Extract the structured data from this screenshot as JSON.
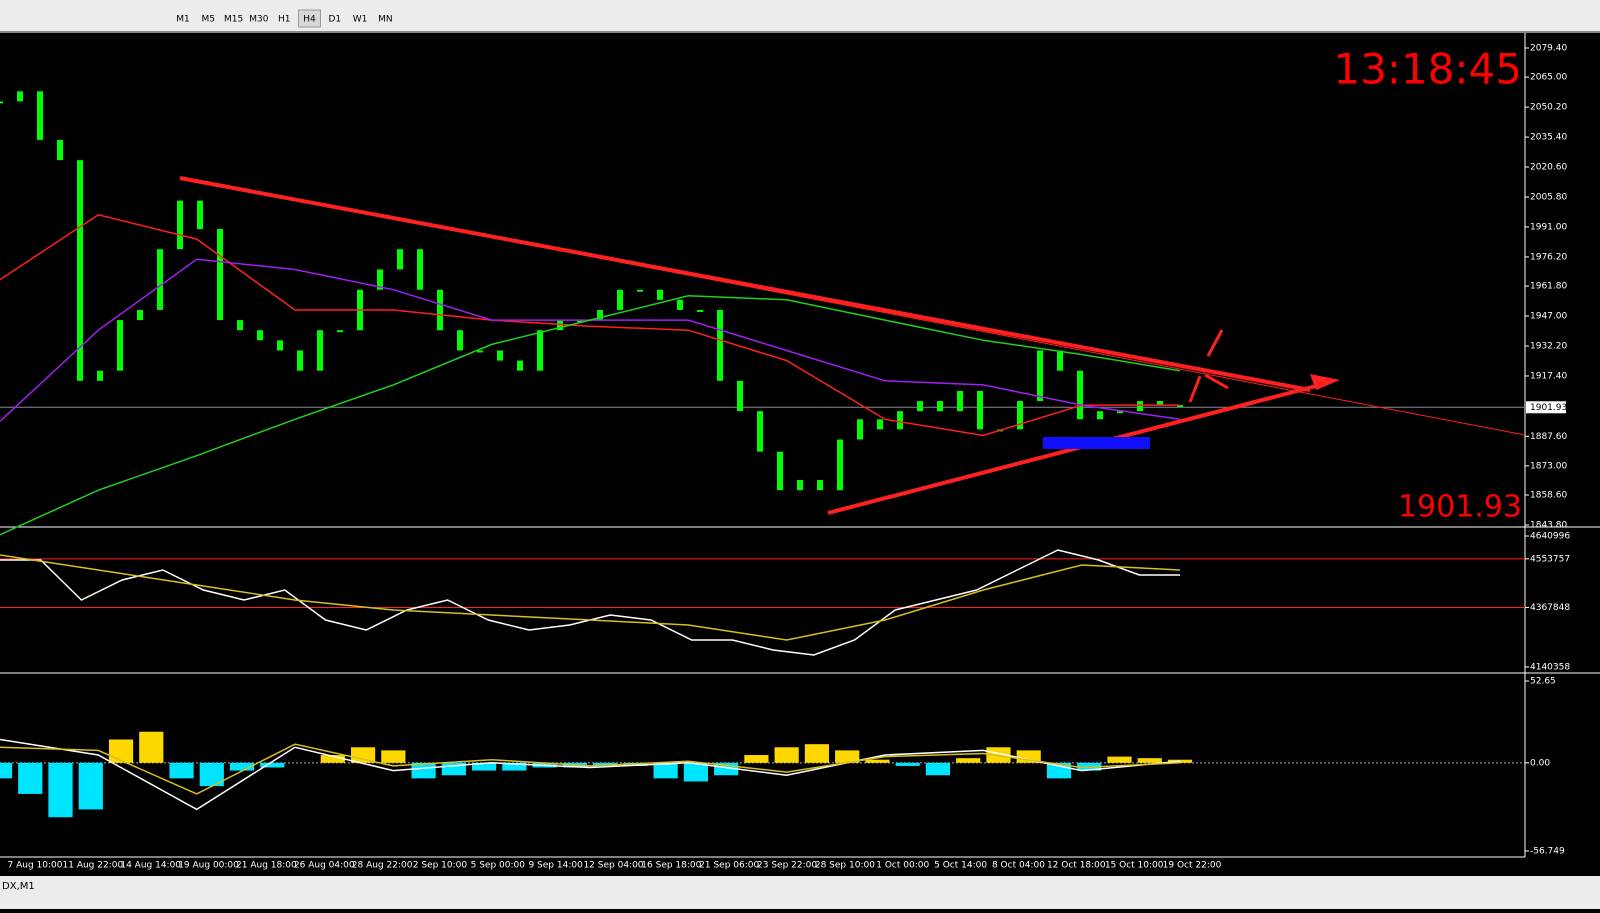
{
  "toolbar": {
    "timeframes": [
      "M1",
      "M5",
      "M15",
      "M30",
      "H1",
      "H4",
      "D1",
      "W1",
      "MN"
    ]
  },
  "status_tab": "DX,M1",
  "chart_data": [
    {
      "type": "candlestick",
      "clock": "13:18:45",
      "current_price": 1901.93,
      "time_labels": [
        "7 Aug 10:00",
        "11 Aug 22:00",
        "14 Aug 14:00",
        "19 Aug 00:00",
        "21 Aug 18:00",
        "26 Aug 04:00",
        "28 Aug 22:00",
        "2 Sep 10:00",
        "5 Sep 00:00",
        "9 Sep 14:00",
        "12 Sep 04:00",
        "16 Sep 18:00",
        "21 Sep 06:00",
        "23 Sep 22:00",
        "28 Sep 10:00",
        "1 Oct 00:00",
        "5 Oct 14:00",
        "8 Oct 04:00",
        "12 Oct 18:00",
        "15 Oct 10:00",
        "19 Oct 22:00"
      ],
      "ylim": [
        1842.8,
        2086.8
      ],
      "yticks": [
        {
          "value": 2079.4,
          "label": "2079.40"
        },
        {
          "value": 2065,
          "label": "2065.00"
        },
        {
          "value": 2050.2,
          "label": "2050.20"
        },
        {
          "value": 2035.4,
          "label": "2035.40"
        },
        {
          "value": 2020.6,
          "label": "2020.60"
        },
        {
          "value": 2005.8,
          "label": "2005.80"
        },
        {
          "value": 1991,
          "label": "1991.00"
        },
        {
          "value": 1976.2,
          "label": "1976.20"
        },
        {
          "value": 1961.8,
          "label": "1961.80"
        },
        {
          "value": 1947,
          "label": "1947.00"
        },
        {
          "value": 1932.2,
          "label": "1932.20"
        },
        {
          "value": 1917.4,
          "label": "1917.40"
        },
        {
          "value": 1887.6,
          "label": "1887.60"
        },
        {
          "value": 1873,
          "label": "1873.00"
        },
        {
          "value": 1858.6,
          "label": "1858.60"
        },
        {
          "value": 1843.8,
          "label": "1843.80"
        }
      ],
      "candle_color": "#00ff00",
      "values": [
        2053,
        2058,
        2034,
        2024,
        1915,
        1920,
        1945,
        1950,
        1980,
        2004,
        1990,
        1945,
        1940,
        1935,
        1930,
        1920,
        1940,
        1940,
        1960,
        1970,
        1980,
        1960,
        1940,
        1930,
        1930,
        1925,
        1920,
        1940,
        1945,
        1945,
        1950,
        1960,
        1960,
        1955,
        1950,
        1950,
        1915,
        1900,
        1880,
        1861,
        1866,
        1861,
        1886,
        1896,
        1891,
        1900,
        1905,
        1900,
        1910,
        1891,
        1891,
        1905,
        1930,
        1920,
        1896,
        1900,
        1900,
        1905,
        1903,
        1902
      ],
      "series": [
        {
          "color": "#ff2020",
          "values": [
            1965,
            1997,
            1985,
            1950,
            1950,
            1945,
            1942,
            1940,
            1925,
            1896,
            1888,
            1903,
            1903
          ]
        },
        {
          "color": "#a020f0",
          "values": [
            1895,
            1940,
            1975,
            1970,
            1960,
            1945,
            1945,
            1945,
            1930,
            1915,
            1913,
            1903,
            1896
          ]
        },
        {
          "color": "#20d020",
          "values": [
            1839,
            1861,
            1878,
            1896,
            1913,
            1933,
            1945,
            1957,
            1955,
            1945,
            1935,
            1928,
            1920
          ]
        }
      ]
    },
    {
      "type": "line",
      "ylim": [
        4121250,
        4663926
      ],
      "yticks": [
        4640996,
        4553757,
        4367848,
        4140358
      ],
      "levels": [
        4553757,
        4367848
      ],
      "series": [
        {
          "color": "#ffffff",
          "values": [
            4549275,
            4549275,
            4396407,
            4472841,
            4511058,
            4434624,
            4396407,
            4434624,
            4319973,
            4281756,
            4358190,
            4396407,
            4319973,
            4281756,
            4300865,
            4339082,
            4319973,
            4243539,
            4243539,
            4205322,
            4186214,
            4243539,
            4358190,
            4396407,
            4434624,
            4511058,
            4587492,
            4549275,
            4491949,
            4491949
          ]
        },
        {
          "color": "#d4c020",
          "values": [
            4568384,
            4511058,
            4453733,
            4396407,
            4358190,
            4339082,
            4319973,
            4300865,
            4243539,
            4319973,
            4434624,
            4530166,
            4511058
          ]
        }
      ]
    },
    {
      "type": "histogram",
      "ylim": [
        -60.61,
        55.87
      ],
      "yticks": [
        52.65,
        {
          "value": 0,
          "label": "0.00"
        },
        -56.749
      ],
      "pos_color": "#ffd700",
      "neg_color": "#00e5ff",
      "values": [
        -10,
        -20,
        -35,
        -30,
        15,
        20,
        -10,
        -15,
        -5,
        -3,
        0,
        5,
        10,
        8,
        -10,
        -8,
        -5,
        -5,
        -3,
        -3,
        -2,
        -2,
        -10,
        -12,
        -8,
        5,
        10,
        12,
        8,
        2,
        -2,
        -8,
        3,
        10,
        8,
        -10,
        -5,
        4,
        3,
        2
      ],
      "series": [
        {
          "color": "#ffffff",
          "values": [
            15,
            5,
            -30,
            10,
            -5,
            0,
            -3,
            0,
            -8,
            5,
            8,
            -5,
            1
          ]
        },
        {
          "color": "#d4c020",
          "values": [
            10,
            8,
            -20,
            12,
            -2,
            2,
            -2,
            1,
            -6,
            4,
            6,
            -3,
            0
          ]
        }
      ]
    }
  ]
}
